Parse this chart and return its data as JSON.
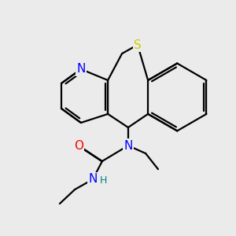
{
  "bg_color": "#ebebeb",
  "atom_colors": {
    "N": "#0000ff",
    "O": "#ff0000",
    "S": "#cccc00",
    "C": "#000000",
    "H": "#008080"
  },
  "bond_color": "#000000",
  "bond_width": 1.6,
  "font_size_atoms": 11,
  "font_size_H": 9
}
